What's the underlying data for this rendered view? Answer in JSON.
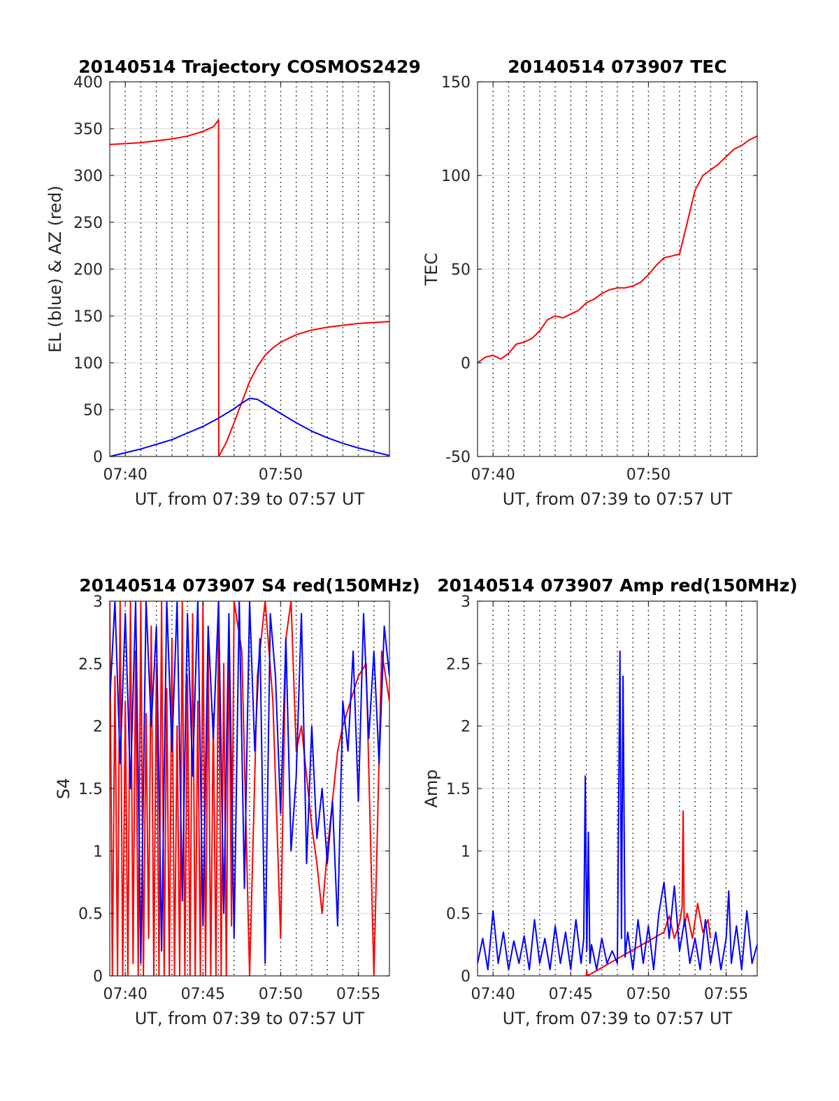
{
  "colors": {
    "red": "#ff0000",
    "blue": "#0000ff",
    "axis": "#262626",
    "grid": "#dcdcdc"
  },
  "chart_data": [
    {
      "type": "line",
      "title": "20140514 Trajectory COSMOS2429",
      "xlabel": "UT, from 07:39 to 07:57 UT",
      "ylabel": "EL (blue) & AZ (red)",
      "xlim": [
        "07:39",
        "07:57"
      ],
      "ylim": [
        0,
        400
      ],
      "xticks": [
        "07:40",
        "07:50"
      ],
      "yticks": [
        0,
        50,
        100,
        150,
        200,
        250,
        300,
        350,
        400
      ],
      "grid": "horizontal solid, vertical dotted every minute",
      "series": [
        {
          "color": "red",
          "x": [
            "07:39:00",
            "07:40:00",
            "07:41:00",
            "07:42:00",
            "07:43:00",
            "07:44:00",
            "07:45:00",
            "07:45:40",
            "07:46:00",
            "07:46:01",
            "07:46:30",
            "07:47:00",
            "07:47:30",
            "07:48:00",
            "07:48:30",
            "07:49:00",
            "07:49:30",
            "07:50:00",
            "07:51:00",
            "07:52:00",
            "07:53:00",
            "07:54:00",
            "07:55:00",
            "07:56:00",
            "07:57:00"
          ],
          "y": [
            333,
            334,
            335,
            337,
            339,
            342,
            347,
            352,
            359,
            0,
            15,
            36,
            58,
            80,
            96,
            108,
            116,
            122,
            130,
            135,
            138,
            140,
            142,
            143,
            144
          ]
        },
        {
          "color": "blue",
          "x": [
            "07:39:00",
            "07:40:00",
            "07:41:00",
            "07:42:00",
            "07:43:00",
            "07:44:00",
            "07:45:00",
            "07:46:00",
            "07:47:00",
            "07:47:30",
            "07:48:00",
            "07:48:30",
            "07:49:00",
            "07:50:00",
            "07:51:00",
            "07:52:00",
            "07:53:00",
            "07:54:00",
            "07:55:00",
            "07:56:00",
            "07:57:00"
          ],
          "y": [
            0,
            4,
            8,
            13,
            18,
            25,
            32,
            41,
            51,
            57,
            62,
            61,
            56,
            46,
            36,
            27,
            20,
            14,
            9,
            5,
            1
          ]
        }
      ]
    },
    {
      "type": "line",
      "title": "20140514 073907 TEC",
      "xlabel": "UT, from 07:39 to 07:57 UT",
      "ylabel": "TEC",
      "xlim": [
        "07:39",
        "07:57"
      ],
      "ylim": [
        -50,
        150
      ],
      "xticks": [
        "07:40",
        "07:50"
      ],
      "yticks": [
        -50,
        0,
        50,
        100,
        150
      ],
      "grid": "horizontal solid, vertical dotted every minute",
      "series": [
        {
          "color": "red",
          "x": [
            "07:39:00",
            "07:39:30",
            "07:40:00",
            "07:40:30",
            "07:41:00",
            "07:41:30",
            "07:42:00",
            "07:42:30",
            "07:43:00",
            "07:43:30",
            "07:44:00",
            "07:44:30",
            "07:45:00",
            "07:45:30",
            "07:46:00",
            "07:46:30",
            "07:47:00",
            "07:47:30",
            "07:48:00",
            "07:48:30",
            "07:49:00",
            "07:49:30",
            "07:50:00",
            "07:50:30",
            "07:51:00",
            "07:51:30",
            "07:52:00",
            "07:52:30",
            "07:53:00",
            "07:53:30",
            "07:54:00",
            "07:54:30",
            "07:55:00",
            "07:55:30",
            "07:56:00",
            "07:56:30",
            "07:57:00"
          ],
          "y": [
            0,
            3,
            4,
            2,
            5,
            10,
            11,
            13,
            17,
            23,
            25,
            24,
            26,
            28,
            32,
            34,
            37,
            39,
            40,
            40,
            41,
            43,
            47,
            52,
            56,
            57,
            58,
            75,
            92,
            100,
            103,
            106,
            110,
            114,
            116,
            119,
            121
          ]
        }
      ]
    },
    {
      "type": "line",
      "title": "20140514 073907 S4 red(150MHz)",
      "xlabel": "UT, from 07:39 to 07:57 UT",
      "ylabel": "S4",
      "xlim": [
        "07:39",
        "07:57"
      ],
      "ylim": [
        0,
        3
      ],
      "xticks": [
        "07:40",
        "07:45",
        "07:50",
        "07:55"
      ],
      "yticks": [
        0,
        0.5,
        1,
        1.5,
        2,
        2.5,
        3
      ],
      "grid": "horizontal solid, vertical dotted every minute",
      "series": [
        {
          "color": "red",
          "x": [
            "07:39:00",
            "07:39:10",
            "07:39:20",
            "07:39:30",
            "07:39:40",
            "07:39:50",
            "07:40:00",
            "07:40:10",
            "07:40:20",
            "07:40:30",
            "07:40:40",
            "07:40:50",
            "07:41:00",
            "07:41:10",
            "07:41:20",
            "07:41:30",
            "07:41:40",
            "07:41:50",
            "07:42:00",
            "07:42:10",
            "07:42:20",
            "07:42:30",
            "07:42:40",
            "07:42:50",
            "07:43:00",
            "07:43:10",
            "07:43:20",
            "07:43:30",
            "07:43:40",
            "07:43:50",
            "07:44:00",
            "07:44:10",
            "07:44:20",
            "07:44:30",
            "07:44:40",
            "07:44:50",
            "07:45:00",
            "07:45:10",
            "07:45:20",
            "07:45:30",
            "07:45:40",
            "07:45:50",
            "07:46:00",
            "07:46:10",
            "07:46:20",
            "07:46:30",
            "07:46:40",
            "07:46:50",
            "07:47:00",
            "07:47:30",
            "07:48:00",
            "07:48:30",
            "07:49:00",
            "07:49:30",
            "07:50:00",
            "07:50:20",
            "07:50:40",
            "07:51:00",
            "07:51:20",
            "07:51:40",
            "07:52:00",
            "07:52:20",
            "07:52:40",
            "07:53:00",
            "07:53:20",
            "07:53:40",
            "07:54:00",
            "07:54:30",
            "07:55:00",
            "07:55:30",
            "07:56:00",
            "07:56:30",
            "07:57:00"
          ],
          "y": [
            3,
            0,
            2.4,
            0,
            3,
            0,
            2.2,
            0,
            3,
            0.1,
            2.6,
            0,
            3,
            0,
            2.1,
            0.3,
            2.8,
            0,
            2.5,
            0,
            3,
            0,
            2.3,
            0,
            2.7,
            0,
            2.0,
            0,
            3,
            0,
            2.4,
            0,
            2.9,
            0,
            2.2,
            0,
            3,
            0,
            2.6,
            0,
            2.1,
            0,
            3,
            0,
            2.5,
            0,
            2.8,
            0.4,
            3,
            2.6,
            0,
            2.4,
            3,
            2.2,
            0.3,
            2.7,
            3,
            1.8,
            2.0,
            1.6,
            1.2,
            0.9,
            0.5,
            1.0,
            1.4,
            1.8,
            2.0,
            2.2,
            2.4,
            2.5,
            0,
            2.6,
            2.2
          ]
        },
        {
          "color": "blue",
          "x": [
            "07:39:00",
            "07:39:20",
            "07:39:40",
            "07:40:00",
            "07:40:20",
            "07:40:40",
            "07:41:00",
            "07:41:20",
            "07:41:40",
            "07:42:00",
            "07:42:20",
            "07:42:40",
            "07:43:00",
            "07:43:20",
            "07:43:40",
            "07:44:00",
            "07:44:20",
            "07:44:40",
            "07:45:00",
            "07:45:20",
            "07:45:40",
            "07:46:00",
            "07:46:20",
            "07:46:40",
            "07:47:00",
            "07:47:20",
            "07:47:40",
            "07:48:00",
            "07:48:20",
            "07:48:40",
            "07:49:00",
            "07:49:20",
            "07:49:40",
            "07:50:00",
            "07:50:20",
            "07:50:40",
            "07:51:00",
            "07:51:20",
            "07:51:40",
            "07:52:00",
            "07:52:20",
            "07:52:40",
            "07:53:00",
            "07:53:20",
            "07:53:40",
            "07:54:00",
            "07:54:20",
            "07:54:40",
            "07:55:00",
            "07:55:20",
            "07:55:40",
            "07:56:00",
            "07:56:20",
            "07:56:40",
            "07:57:00"
          ],
          "y": [
            2.2,
            3,
            1.7,
            2.9,
            1.5,
            3,
            0.1,
            3,
            2.0,
            2.8,
            0.2,
            3,
            1.8,
            3,
            0.6,
            2.9,
            1.6,
            3,
            0.4,
            2.8,
            1.9,
            3,
            0.5,
            2.9,
            0.3,
            3,
            0.7,
            3,
            1.8,
            2.7,
            0.1,
            2.9,
            2.4,
            1.3,
            2.7,
            1.0,
            1.6,
            2.9,
            0.9,
            2.0,
            1.1,
            1.5,
            0.9,
            1.4,
            0.4,
            2.2,
            1.8,
            2.6,
            1.4,
            2.9,
            1.9,
            2.6,
            1.7,
            2.8,
            2.4
          ]
        }
      ]
    },
    {
      "type": "line",
      "title": "20140514 073907 Amp red(150MHz)",
      "xlabel": "UT, from 07:39 to 07:57 UT",
      "ylabel": "Amp",
      "xlim": [
        "07:39",
        "07:57"
      ],
      "ylim": [
        0,
        3
      ],
      "xticks": [
        "07:40",
        "07:45",
        "07:50",
        "07:55"
      ],
      "yticks": [
        0,
        0.5,
        1,
        1.5,
        2,
        2.5,
        3
      ],
      "grid": "horizontal solid, vertical dotted every minute",
      "series": [
        {
          "color": "red",
          "x": [
            "07:46:00",
            "07:46:02",
            "07:46:04",
            "07:51:00",
            "07:51:20",
            "07:51:40",
            "07:52:00",
            "07:52:10",
            "07:52:14",
            "07:52:18",
            "07:52:30",
            "07:52:50",
            "07:53:10",
            "07:53:30",
            "07:53:50",
            "07:54:00"
          ],
          "y": [
            0,
            0.04,
            0,
            0.35,
            0.48,
            0.3,
            0.42,
            0.55,
            1.32,
            0.4,
            0.5,
            0.3,
            0.58,
            0.35,
            0.45,
            0.3
          ]
        },
        {
          "color": "blue",
          "x": [
            "07:39:00",
            "07:39:20",
            "07:39:40",
            "07:40:00",
            "07:40:20",
            "07:40:40",
            "07:41:00",
            "07:41:20",
            "07:41:40",
            "07:42:00",
            "07:42:20",
            "07:42:40",
            "07:43:00",
            "07:43:20",
            "07:43:40",
            "07:44:00",
            "07:44:20",
            "07:44:40",
            "07:45:00",
            "07:45:20",
            "07:45:40",
            "07:45:50",
            "07:45:56",
            "07:46:02",
            "07:46:08",
            "07:46:14",
            "07:46:20",
            "07:46:40",
            "07:47:00",
            "07:47:20",
            "07:47:40",
            "07:48:00",
            "07:48:10",
            "07:48:16",
            "07:48:22",
            "07:48:30",
            "07:48:40",
            "07:49:00",
            "07:49:20",
            "07:49:40",
            "07:50:00",
            "07:50:20",
            "07:50:40",
            "07:51:00",
            "07:51:20",
            "07:51:40",
            "07:52:00",
            "07:52:20",
            "07:52:40",
            "07:53:00",
            "07:53:20",
            "07:53:40",
            "07:54:00",
            "07:54:20",
            "07:54:40",
            "07:55:00",
            "07:55:10",
            "07:55:20",
            "07:55:40",
            "07:56:00",
            "07:56:20",
            "07:56:40",
            "07:57:00"
          ],
          "y": [
            0.1,
            0.3,
            0.05,
            0.52,
            0.1,
            0.35,
            0.05,
            0.28,
            0.1,
            0.32,
            0.05,
            0.45,
            0.1,
            0.3,
            0.05,
            0.4,
            0.1,
            0.35,
            0.05,
            0.45,
            0.1,
            0.3,
            1.6,
            0.2,
            1.15,
            0.1,
            0.25,
            0.05,
            0.3,
            0.1,
            0.2,
            0.1,
            2.6,
            0.3,
            2.4,
            0.15,
            0.35,
            0.05,
            0.45,
            0.1,
            0.4,
            0.05,
            0.5,
            0.75,
            0.3,
            0.72,
            0.2,
            0.45,
            0.1,
            0.3,
            0.05,
            0.45,
            0.1,
            0.35,
            0.05,
            0.3,
            0.68,
            0.1,
            0.4,
            0.05,
            0.52,
            0.1,
            0.25
          ]
        }
      ]
    }
  ]
}
